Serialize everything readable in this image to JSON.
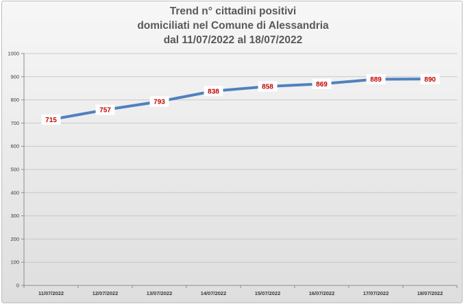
{
  "chart_data": {
    "type": "line",
    "title": "Trend n° cittadini positivi\ndomiciliati nel Comune di Alessandria\ndal 11/07/2022 al 18/07/2022",
    "title_lines": [
      "Trend n° cittadini positivi",
      "domiciliati nel Comune di Alessandria",
      "dal 11/07/2022 al 18/07/2022"
    ],
    "xlabel": "",
    "ylabel": "",
    "categories": [
      "11/07/2022",
      "12/07/2022",
      "13/07/2022",
      "14/07/2022",
      "15/07/2022",
      "16/07/2022",
      "17/07/2022",
      "18/07/2022"
    ],
    "series": [
      {
        "values": [
          715,
          757,
          793,
          838,
          858,
          869,
          889,
          890
        ],
        "color": "#4f81bd"
      }
    ],
    "ylim": [
      0,
      1000
    ],
    "yticks": [
      0,
      100,
      200,
      300,
      400,
      500,
      600,
      700,
      800,
      900,
      1000
    ],
    "grid": true,
    "legend": "none",
    "data_labels": true,
    "data_label_color": "#c00000",
    "gridline_color": "#c8c8c8"
  }
}
